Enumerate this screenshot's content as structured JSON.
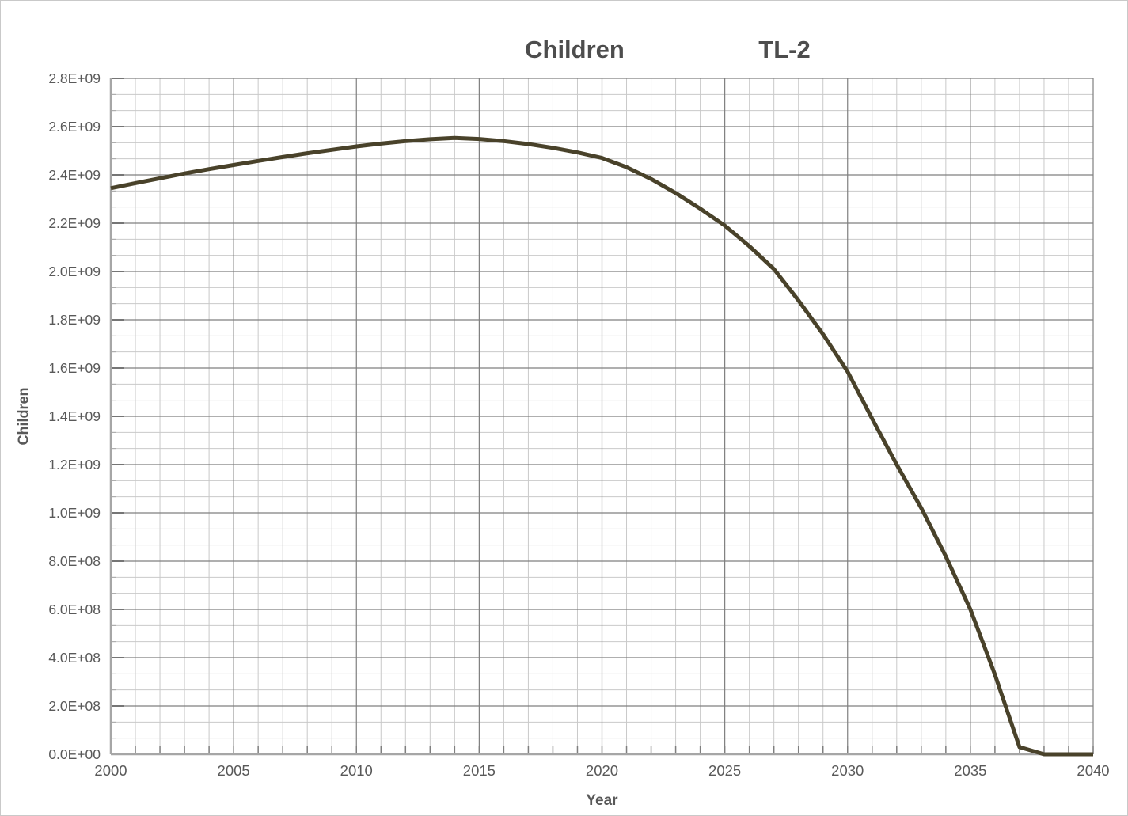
{
  "title": {
    "main": "Children",
    "suffix": "TL-2"
  },
  "axes": {
    "x": {
      "label": "Year",
      "min": 2000,
      "max": 2040,
      "major_step": 5,
      "minor_step": 1,
      "tick_labels": [
        "2000",
        "2005",
        "2010",
        "2015",
        "2020",
        "2025",
        "2030",
        "2035",
        "2040"
      ]
    },
    "y": {
      "label": "Children",
      "min": 0,
      "max": 2800000000,
      "major_step": 200000000,
      "minors_per_major": 3,
      "tick_labels": [
        "2.8E+09",
        "2.6E+09",
        "2.4E+09",
        "2.2E+09",
        "2.0E+09",
        "1.8E+09",
        "1.6E+09",
        "1.4E+09",
        "1.2E+09",
        "1.0E+09",
        "8.0E+08",
        "6.0E+08",
        "4.0E+08",
        "2.0E+08",
        "0.0E+00"
      ]
    }
  },
  "colors": {
    "line": "#49422a",
    "minor_grid": "#c9c9c9",
    "major_grid": "#7f7f7f",
    "axis_line": "#a6a6a6",
    "tick_major": "#666666",
    "tick_minor": "#a6a6a6",
    "text": "#595959",
    "title_text": "#4d4d4d"
  },
  "chart_data": {
    "type": "line",
    "title": "Children TL-2",
    "xlabel": "Year",
    "ylabel": "Children",
    "xlim": [
      2000,
      2040
    ],
    "ylim": [
      0,
      2800000000
    ],
    "grid": "major+minor",
    "legend": "none",
    "series": [
      {
        "name": "Children",
        "color": "#49422a",
        "x": [
          2000,
          2001,
          2002,
          2003,
          2004,
          2005,
          2006,
          2007,
          2008,
          2009,
          2010,
          2011,
          2012,
          2013,
          2014,
          2015,
          2016,
          2017,
          2018,
          2019,
          2020,
          2021,
          2022,
          2023,
          2024,
          2025,
          2026,
          2027,
          2028,
          2029,
          2030,
          2031,
          2032,
          2033,
          2034,
          2035,
          2036,
          2037,
          2038,
          2039,
          2040
        ],
        "values": [
          2345000000,
          2366000000,
          2386000000,
          2406000000,
          2424000000,
          2441000000,
          2458000000,
          2474000000,
          2490000000,
          2504000000,
          2518000000,
          2530000000,
          2540000000,
          2548000000,
          2553000000,
          2549000000,
          2540000000,
          2528000000,
          2512000000,
          2493000000,
          2470000000,
          2432000000,
          2383000000,
          2325000000,
          2260000000,
          2190000000,
          2105000000,
          2010000000,
          1880000000,
          1740000000,
          1585000000,
          1390000000,
          1200000000,
          1020000000,
          820000000,
          600000000,
          330000000,
          30000000,
          0,
          0,
          0
        ]
      }
    ]
  }
}
